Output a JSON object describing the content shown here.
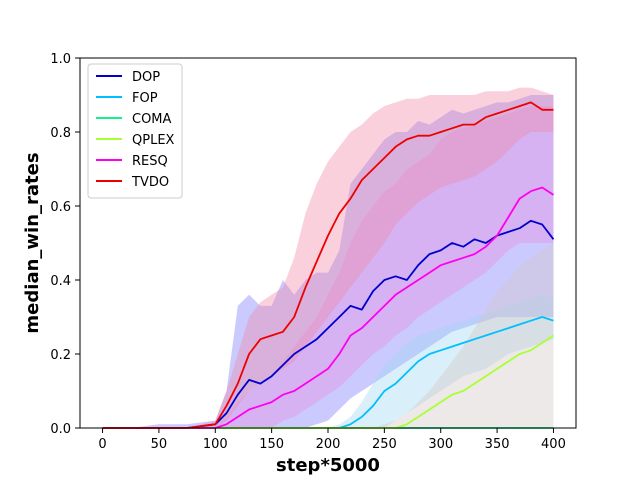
{
  "chart_data": {
    "type": "line",
    "xlabel": "step*5000",
    "ylabel": "median_win_rates",
    "xlim": [
      -20,
      420
    ],
    "ylim": [
      0,
      1.0
    ],
    "xticks": [
      0,
      50,
      100,
      150,
      200,
      250,
      300,
      350,
      400
    ],
    "yticks": [
      0.0,
      0.2,
      0.4,
      0.6,
      0.8,
      1.0
    ],
    "legend_position": "top-left",
    "grid": false,
    "x": [
      0,
      25,
      50,
      75,
      100,
      110,
      120,
      130,
      140,
      150,
      160,
      170,
      180,
      190,
      200,
      210,
      220,
      230,
      240,
      250,
      260,
      270,
      280,
      290,
      300,
      310,
      320,
      330,
      340,
      350,
      360,
      370,
      380,
      390,
      400
    ],
    "series": [
      {
        "name": "DOP",
        "color": "#0000cc",
        "band_color": "#7b7bff",
        "values": [
          0,
          0,
          0,
          0,
          0.01,
          0.04,
          0.09,
          0.13,
          0.12,
          0.14,
          0.17,
          0.2,
          0.22,
          0.24,
          0.27,
          0.3,
          0.33,
          0.32,
          0.37,
          0.4,
          0.41,
          0.4,
          0.44,
          0.47,
          0.48,
          0.5,
          0.49,
          0.51,
          0.5,
          0.52,
          0.53,
          0.54,
          0.56,
          0.55,
          0.51
        ],
        "upper": [
          0,
          0,
          0.01,
          0.01,
          0.02,
          0.1,
          0.33,
          0.36,
          0.33,
          0.33,
          0.4,
          0.36,
          0.4,
          0.42,
          0.42,
          0.48,
          0.66,
          0.7,
          0.74,
          0.78,
          0.8,
          0.8,
          0.83,
          0.82,
          0.84,
          0.86,
          0.85,
          0.86,
          0.87,
          0.88,
          0.88,
          0.89,
          0.9,
          0.9,
          0.9
        ],
        "lower": [
          0,
          0,
          0,
          0,
          0,
          0,
          0,
          0,
          0,
          0,
          0,
          0,
          0,
          0.01,
          0.02,
          0.05,
          0.08,
          0.1,
          0.12,
          0.14,
          0.16,
          0.18,
          0.2,
          0.22,
          0.24,
          0.26,
          0.27,
          0.28,
          0.29,
          0.3,
          0.3,
          0.3,
          0.3,
          0.3,
          0.3
        ]
      },
      {
        "name": "FOP",
        "color": "#00bfff",
        "band_color": "#9fd8f0",
        "values": [
          0,
          0,
          0,
          0,
          0,
          0,
          0,
          0,
          0,
          0,
          0,
          0,
          0,
          0,
          0,
          0,
          0.01,
          0.03,
          0.06,
          0.1,
          0.12,
          0.15,
          0.18,
          0.2,
          0.21,
          0.22,
          0.23,
          0.24,
          0.25,
          0.26,
          0.27,
          0.28,
          0.29,
          0.3,
          0.29
        ],
        "upper": [
          0,
          0,
          0,
          0,
          0,
          0,
          0,
          0,
          0,
          0,
          0,
          0,
          0,
          0,
          0,
          0.01,
          0.03,
          0.07,
          0.12,
          0.17,
          0.2,
          0.23,
          0.25,
          0.26,
          0.27,
          0.28,
          0.29,
          0.3,
          0.31,
          0.32,
          0.33,
          0.34,
          0.35,
          0.36,
          0.35
        ],
        "lower": [
          0,
          0,
          0,
          0,
          0,
          0,
          0,
          0,
          0,
          0,
          0,
          0,
          0,
          0,
          0,
          0,
          0,
          0,
          0,
          0,
          0.02,
          0.04,
          0.06,
          0.08,
          0.1,
          0.12,
          0.14,
          0.15,
          0.16,
          0.18,
          0.2,
          0.21,
          0.22,
          0.23,
          0.24
        ]
      },
      {
        "name": "COMA",
        "color": "#1aee8c",
        "band_color": "#aef0cc",
        "values": [
          0,
          0,
          0,
          0,
          0,
          0,
          0,
          0,
          0,
          0,
          0,
          0,
          0,
          0,
          0,
          0,
          0,
          0,
          0,
          0,
          0,
          0,
          0,
          0,
          0,
          0,
          0,
          0,
          0,
          0,
          0,
          0,
          0,
          0,
          0
        ],
        "upper": [
          0,
          0,
          0,
          0,
          0,
          0,
          0,
          0,
          0,
          0,
          0,
          0,
          0,
          0,
          0,
          0,
          0,
          0,
          0,
          0,
          0,
          0,
          0,
          0,
          0,
          0,
          0,
          0,
          0,
          0,
          0,
          0,
          0,
          0,
          0
        ],
        "lower": [
          0,
          0,
          0,
          0,
          0,
          0,
          0,
          0,
          0,
          0,
          0,
          0,
          0,
          0,
          0,
          0,
          0,
          0,
          0,
          0,
          0,
          0,
          0,
          0,
          0,
          0,
          0,
          0,
          0,
          0,
          0,
          0,
          0,
          0,
          0
        ]
      },
      {
        "name": "QPLEX",
        "color": "#aaff33",
        "band_color": "#d4c8c8",
        "values": [
          0,
          0,
          0,
          0,
          0,
          0,
          0,
          0,
          0,
          0,
          0,
          0,
          0,
          0,
          0,
          0,
          0,
          0,
          0,
          0,
          0,
          0.01,
          0.03,
          0.05,
          0.07,
          0.09,
          0.1,
          0.12,
          0.14,
          0.16,
          0.18,
          0.2,
          0.21,
          0.23,
          0.25
        ],
        "upper": [
          0,
          0,
          0,
          0,
          0,
          0,
          0,
          0,
          0,
          0,
          0,
          0,
          0,
          0,
          0,
          0,
          0,
          0,
          0,
          0.01,
          0.02,
          0.04,
          0.07,
          0.1,
          0.14,
          0.18,
          0.22,
          0.27,
          0.32,
          0.37,
          0.4,
          0.44,
          0.46,
          0.48,
          0.5
        ],
        "lower": [
          0,
          0,
          0,
          0,
          0,
          0,
          0,
          0,
          0,
          0,
          0,
          0,
          0,
          0,
          0,
          0,
          0,
          0,
          0,
          0,
          0,
          0,
          0,
          0,
          0,
          0,
          0,
          0,
          0,
          0,
          0,
          0,
          0,
          0,
          0
        ]
      },
      {
        "name": "RESQ",
        "color": "#ff00ee",
        "band_color": "#e88ee0",
        "values": [
          0,
          0,
          0,
          0,
          0,
          0.01,
          0.03,
          0.05,
          0.06,
          0.07,
          0.09,
          0.1,
          0.12,
          0.14,
          0.16,
          0.2,
          0.25,
          0.27,
          0.3,
          0.33,
          0.36,
          0.38,
          0.4,
          0.42,
          0.44,
          0.45,
          0.46,
          0.47,
          0.49,
          0.52,
          0.57,
          0.62,
          0.64,
          0.65,
          0.63
        ],
        "upper": [
          0,
          0,
          0,
          0,
          0,
          0.03,
          0.07,
          0.1,
          0.12,
          0.14,
          0.18,
          0.22,
          0.26,
          0.3,
          0.36,
          0.42,
          0.5,
          0.56,
          0.6,
          0.64,
          0.66,
          0.7,
          0.72,
          0.74,
          0.78,
          0.8,
          0.81,
          0.82,
          0.83,
          0.84,
          0.85,
          0.86,
          0.87,
          0.87,
          0.87
        ],
        "lower": [
          0,
          0,
          0,
          0,
          0,
          0,
          0,
          0,
          0,
          0,
          0.02,
          0.03,
          0.05,
          0.07,
          0.09,
          0.11,
          0.14,
          0.17,
          0.2,
          0.22,
          0.25,
          0.27,
          0.3,
          0.32,
          0.34,
          0.36,
          0.38,
          0.4,
          0.42,
          0.45,
          0.48,
          0.5,
          0.5,
          0.5,
          0.5
        ]
      },
      {
        "name": "TVDO",
        "color": "#ee0000",
        "band_color": "#f08aa8",
        "values": [
          0,
          0,
          0,
          0,
          0.01,
          0.06,
          0.12,
          0.2,
          0.24,
          0.25,
          0.26,
          0.3,
          0.38,
          0.45,
          0.52,
          0.58,
          0.62,
          0.67,
          0.7,
          0.73,
          0.76,
          0.78,
          0.79,
          0.79,
          0.8,
          0.81,
          0.82,
          0.82,
          0.84,
          0.85,
          0.86,
          0.87,
          0.88,
          0.86,
          0.86
        ],
        "upper": [
          0,
          0,
          0,
          0,
          0.02,
          0.1,
          0.2,
          0.3,
          0.34,
          0.36,
          0.38,
          0.46,
          0.58,
          0.66,
          0.72,
          0.76,
          0.8,
          0.82,
          0.85,
          0.87,
          0.88,
          0.89,
          0.89,
          0.9,
          0.9,
          0.9,
          0.9,
          0.9,
          0.91,
          0.91,
          0.91,
          0.92,
          0.92,
          0.91,
          0.9
        ],
        "lower": [
          0,
          0,
          0,
          0,
          0,
          0.02,
          0.06,
          0.1,
          0.12,
          0.14,
          0.16,
          0.18,
          0.22,
          0.26,
          0.3,
          0.34,
          0.38,
          0.42,
          0.46,
          0.5,
          0.55,
          0.58,
          0.61,
          0.63,
          0.65,
          0.66,
          0.67,
          0.68,
          0.7,
          0.72,
          0.75,
          0.78,
          0.8,
          0.8,
          0.8
        ]
      }
    ]
  }
}
